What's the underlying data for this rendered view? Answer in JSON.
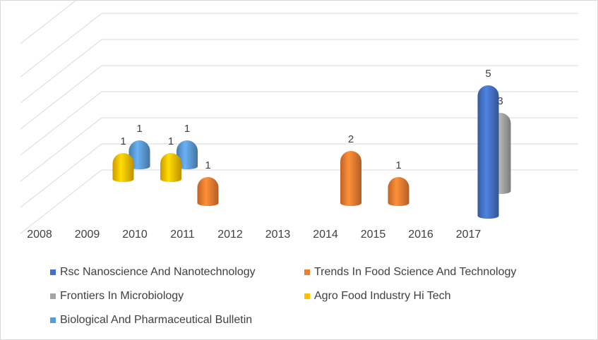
{
  "chart_data": {
    "type": "bar",
    "categories": [
      "2008",
      "2009",
      "2010",
      "2011",
      "2012",
      "2013",
      "2014",
      "2015",
      "2016",
      "2017"
    ],
    "series": [
      {
        "name": "Rsc Nanoscience And Nanotechnology",
        "color": "#4472c4",
        "values": [
          0,
          0,
          0,
          0,
          0,
          0,
          0,
          0,
          0,
          5
        ]
      },
      {
        "name": "Trends In Food Science And Technology",
        "color": "#ed7d31",
        "values": [
          0,
          0,
          0,
          1,
          0,
          0,
          2,
          1,
          0,
          0
        ]
      },
      {
        "name": "Frontiers In Microbiology",
        "color": "#a5a5a5",
        "values": [
          0,
          0,
          0,
          0,
          0,
          0,
          0,
          0,
          0,
          3
        ]
      },
      {
        "name": "Agro Food Industry Hi Tech",
        "color": "#ffc000",
        "values": [
          0,
          1,
          1,
          0,
          0,
          0,
          0,
          0,
          0,
          0
        ]
      },
      {
        "name": "Biological And Pharmaceutical Bulletin",
        "color": "#5b9bd5",
        "values": [
          0,
          1,
          1,
          0,
          0,
          0,
          0,
          0,
          0,
          0
        ]
      }
    ],
    "ylim": [
      0,
      5
    ],
    "grid": true,
    "legend_position": "bottom",
    "title": "",
    "xlabel": "",
    "ylabel": ""
  }
}
